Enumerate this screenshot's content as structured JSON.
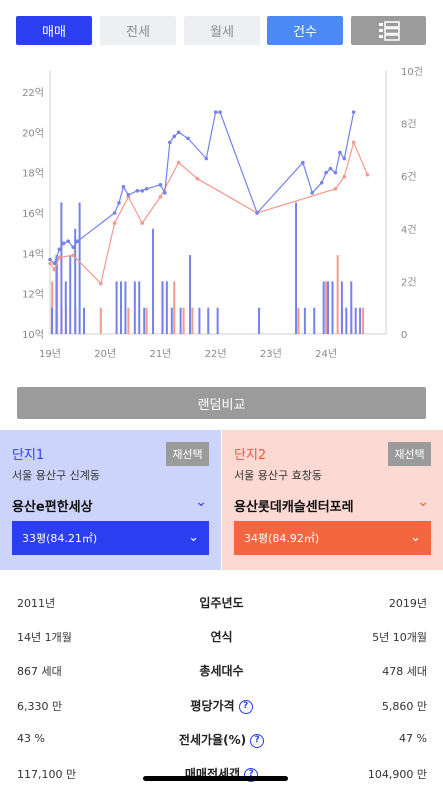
{
  "tabs": {
    "trade": "매매",
    "jeonse": "전세",
    "wolse": "월세",
    "count": "건수"
  },
  "chart_data": {
    "type": "line",
    "x_ticks": [
      "19년",
      "20년",
      "21년",
      "22년",
      "23년",
      "24년"
    ],
    "y_left_ticks": [
      "22억",
      "20억",
      "18억",
      "16억",
      "14억",
      "12억",
      "10억"
    ],
    "y_right_ticks": [
      "10건",
      "8건",
      "6건",
      "4건",
      "2건",
      "0"
    ],
    "ylim_left": [
      10,
      22
    ],
    "ylim_right": [
      0,
      10
    ],
    "colors": {
      "series1": "#7482ea",
      "series2": "#f4998d"
    },
    "series1_price": [
      [
        2019.0,
        13.7
      ],
      [
        2019.08,
        13.5
      ],
      [
        2019.17,
        14.2
      ],
      [
        2019.25,
        14.5
      ],
      [
        2019.33,
        14.6
      ],
      [
        2019.42,
        14.3
      ],
      [
        2019.5,
        14.6
      ],
      [
        2020.17,
        16.0
      ],
      [
        2020.25,
        16.5
      ],
      [
        2020.33,
        17.3
      ],
      [
        2020.42,
        16.9
      ],
      [
        2020.58,
        17.1
      ],
      [
        2020.67,
        17.1
      ],
      [
        2020.75,
        17.2
      ],
      [
        2021.0,
        17.4
      ],
      [
        2021.08,
        17.0
      ],
      [
        2021.17,
        19.5
      ],
      [
        2021.25,
        19.8
      ],
      [
        2021.33,
        20.0
      ],
      [
        2021.5,
        19.7
      ],
      [
        2021.83,
        18.7
      ],
      [
        2022.0,
        21.0
      ],
      [
        2022.08,
        21.0
      ],
      [
        2022.75,
        16.0
      ],
      [
        2023.58,
        18.5
      ],
      [
        2023.75,
        17.0
      ],
      [
        2023.92,
        17.5
      ],
      [
        2024.0,
        18.0
      ],
      [
        2024.08,
        18.2
      ],
      [
        2024.17,
        18.0
      ],
      [
        2024.25,
        19.0
      ],
      [
        2024.33,
        18.7
      ],
      [
        2024.5,
        21.0
      ]
    ],
    "series2_price": [
      [
        2019.0,
        13.5
      ],
      [
        2019.08,
        13.2
      ],
      [
        2019.17,
        13.8
      ],
      [
        2019.42,
        13.9
      ],
      [
        2019.92,
        12.5
      ],
      [
        2020.17,
        15.5
      ],
      [
        2020.42,
        16.8
      ],
      [
        2020.67,
        15.5
      ],
      [
        2021.0,
        16.8
      ],
      [
        2021.33,
        18.5
      ],
      [
        2021.67,
        17.7
      ],
      [
        2022.75,
        16.0
      ],
      [
        2024.17,
        17.2
      ],
      [
        2024.33,
        17.8
      ],
      [
        2024.5,
        19.5
      ],
      [
        2024.75,
        17.9
      ]
    ],
    "series1_count": [
      [
        2019.0,
        1
      ],
      [
        2019.08,
        3
      ],
      [
        2019.17,
        5
      ],
      [
        2019.25,
        2
      ],
      [
        2019.33,
        3
      ],
      [
        2019.42,
        4
      ],
      [
        2019.5,
        5
      ],
      [
        2019.58,
        1
      ],
      [
        2020.17,
        2
      ],
      [
        2020.25,
        2
      ],
      [
        2020.33,
        2
      ],
      [
        2020.5,
        2
      ],
      [
        2020.58,
        2
      ],
      [
        2020.67,
        1
      ],
      [
        2020.83,
        4
      ],
      [
        2021.0,
        2
      ],
      [
        2021.08,
        2
      ],
      [
        2021.17,
        1
      ],
      [
        2021.33,
        1
      ],
      [
        2021.5,
        3
      ],
      [
        2021.67,
        1
      ],
      [
        2021.83,
        1
      ],
      [
        2022.0,
        1
      ],
      [
        2022.75,
        1
      ],
      [
        2023.42,
        5
      ],
      [
        2023.58,
        1
      ],
      [
        2023.75,
        1
      ],
      [
        2023.92,
        2
      ],
      [
        2024.0,
        2
      ],
      [
        2024.08,
        2
      ],
      [
        2024.25,
        2
      ],
      [
        2024.33,
        1
      ],
      [
        2024.42,
        2
      ],
      [
        2024.5,
        1
      ],
      [
        2024.58,
        1
      ]
    ],
    "series2_count": [
      [
        2019.04,
        2
      ],
      [
        2019.13,
        3
      ],
      [
        2019.21,
        1
      ],
      [
        2019.29,
        1
      ],
      [
        2019.46,
        1
      ],
      [
        2019.92,
        1
      ],
      [
        2020.42,
        1
      ],
      [
        2020.75,
        1
      ],
      [
        2021.04,
        2
      ],
      [
        2021.25,
        2
      ],
      [
        2021.42,
        1
      ],
      [
        2021.58,
        1
      ],
      [
        2023.5,
        1
      ],
      [
        2024.0,
        2
      ],
      [
        2024.21,
        3
      ],
      [
        2024.29,
        1
      ],
      [
        2024.46,
        1
      ],
      [
        2024.67,
        1
      ]
    ]
  },
  "compare_button": "랜덤비교",
  "complex1": {
    "label": "단지1",
    "reselect": "재선택",
    "address": "서울 용산구 신계동",
    "name": "용산e편한세상",
    "size": "33평(84.21㎡)"
  },
  "complex2": {
    "label": "단지2",
    "reselect": "재선택",
    "address": "서울 용산구 효창동",
    "name": "용산롯데캐슬센터포레",
    "size": "34평(84.92㎡)"
  },
  "compare_rows": [
    {
      "left": "2011년",
      "label": "입주년도",
      "right": "2019년",
      "help": false
    },
    {
      "left": "14년 1개월",
      "label": "연식",
      "right": "5년 10개월",
      "help": false
    },
    {
      "left": "867 세대",
      "label": "총세대수",
      "right": "478 세대",
      "help": false
    },
    {
      "left": "6,330 만",
      "label": "평당가격",
      "right": "5,860 만",
      "help": true
    },
    {
      "left": "43 %",
      "label": "전세가율(%)",
      "right": "47 %",
      "help": true
    },
    {
      "left": "117,100 만",
      "label": "매매전세갭",
      "right": "104,900 만",
      "help": true
    }
  ]
}
